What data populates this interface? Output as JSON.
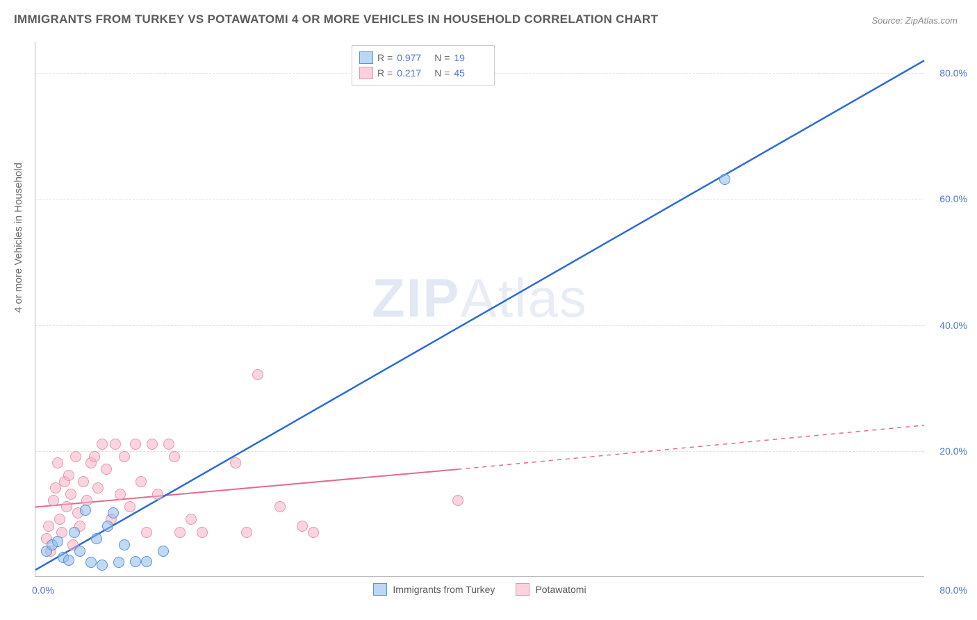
{
  "title": "IMMIGRANTS FROM TURKEY VS POTAWATOMI 4 OR MORE VEHICLES IN HOUSEHOLD CORRELATION CHART",
  "source": "Source: ZipAtlas.com",
  "ylabel": "4 or more Vehicles in Household",
  "watermark_bold": "ZIP",
  "watermark_rest": "Atlas",
  "chart": {
    "type": "scatter-with-regression",
    "xlim": [
      0,
      80
    ],
    "ylim": [
      0,
      85
    ],
    "yticks": [
      {
        "v": 20,
        "label": "20.0%"
      },
      {
        "v": 40,
        "label": "40.0%"
      },
      {
        "v": 60,
        "label": "60.0%"
      },
      {
        "v": 80,
        "label": "80.0%"
      }
    ],
    "xtick_left": "0.0%",
    "xtick_right": "80.0%",
    "background_color": "#ffffff",
    "grid_color": "#e0e0e0",
    "marker_size": 16,
    "series": [
      {
        "name": "Immigrants from Turkey",
        "color_fill": "#90baed",
        "color_stroke": "#5a93d6",
        "line_color": "#2b6bd4",
        "line_width": 2.5,
        "R": "0.977",
        "N": "19",
        "regression": {
          "x1": 0,
          "y1": 1,
          "x2": 80,
          "y2": 82
        },
        "points": [
          {
            "x": 1,
            "y": 4
          },
          {
            "x": 1.5,
            "y": 5
          },
          {
            "x": 2,
            "y": 5.5
          },
          {
            "x": 2.5,
            "y": 3
          },
          {
            "x": 3,
            "y": 2.5
          },
          {
            "x": 3.5,
            "y": 7
          },
          {
            "x": 4,
            "y": 4
          },
          {
            "x": 4.5,
            "y": 10.5
          },
          {
            "x": 5,
            "y": 2.2
          },
          {
            "x": 5.5,
            "y": 6
          },
          {
            "x": 6,
            "y": 1.8
          },
          {
            "x": 6.5,
            "y": 8
          },
          {
            "x": 7,
            "y": 10
          },
          {
            "x": 7.5,
            "y": 2.2
          },
          {
            "x": 8,
            "y": 5
          },
          {
            "x": 9,
            "y": 2.3
          },
          {
            "x": 10,
            "y": 2.3
          },
          {
            "x": 11.5,
            "y": 4
          },
          {
            "x": 62,
            "y": 63
          }
        ]
      },
      {
        "name": "Potawatomi",
        "color_fill": "#f6b2c4",
        "color_stroke": "#e895ab",
        "line_color": "#e36a8a",
        "line_width": 2,
        "R": "0.217",
        "N": "45",
        "regression_solid": {
          "x1": 0,
          "y1": 11,
          "x2": 38,
          "y2": 17
        },
        "regression_dashed": {
          "x1": 38,
          "y1": 17,
          "x2": 80,
          "y2": 24
        },
        "points": [
          {
            "x": 1,
            "y": 6
          },
          {
            "x": 1.2,
            "y": 8
          },
          {
            "x": 1.4,
            "y": 4
          },
          {
            "x": 1.6,
            "y": 12
          },
          {
            "x": 1.8,
            "y": 14
          },
          {
            "x": 2,
            "y": 18
          },
          {
            "x": 2.2,
            "y": 9
          },
          {
            "x": 2.4,
            "y": 7
          },
          {
            "x": 2.6,
            "y": 15
          },
          {
            "x": 2.8,
            "y": 11
          },
          {
            "x": 3,
            "y": 16
          },
          {
            "x": 3.2,
            "y": 13
          },
          {
            "x": 3.4,
            "y": 5
          },
          {
            "x": 3.6,
            "y": 19
          },
          {
            "x": 3.8,
            "y": 10
          },
          {
            "x": 4,
            "y": 8
          },
          {
            "x": 4.3,
            "y": 15
          },
          {
            "x": 4.6,
            "y": 12
          },
          {
            "x": 5,
            "y": 18
          },
          {
            "x": 5.3,
            "y": 19
          },
          {
            "x": 5.6,
            "y": 14
          },
          {
            "x": 6,
            "y": 21
          },
          {
            "x": 6.4,
            "y": 17
          },
          {
            "x": 6.8,
            "y": 9
          },
          {
            "x": 7.2,
            "y": 21
          },
          {
            "x": 7.6,
            "y": 13
          },
          {
            "x": 8,
            "y": 19
          },
          {
            "x": 8.5,
            "y": 11
          },
          {
            "x": 9,
            "y": 21
          },
          {
            "x": 9.5,
            "y": 15
          },
          {
            "x": 10,
            "y": 7
          },
          {
            "x": 10.5,
            "y": 21
          },
          {
            "x": 11,
            "y": 13
          },
          {
            "x": 12,
            "y": 21
          },
          {
            "x": 12.5,
            "y": 19
          },
          {
            "x": 13,
            "y": 7
          },
          {
            "x": 14,
            "y": 9
          },
          {
            "x": 15,
            "y": 7
          },
          {
            "x": 18,
            "y": 18
          },
          {
            "x": 19,
            "y": 7
          },
          {
            "x": 20,
            "y": 32
          },
          {
            "x": 22,
            "y": 11
          },
          {
            "x": 24,
            "y": 8
          },
          {
            "x": 25,
            "y": 7
          },
          {
            "x": 38,
            "y": 12
          }
        ]
      }
    ]
  },
  "legend_bottom": [
    {
      "swatch": "blue",
      "label": "Immigrants from Turkey"
    },
    {
      "swatch": "pink",
      "label": "Potawatomi"
    }
  ]
}
